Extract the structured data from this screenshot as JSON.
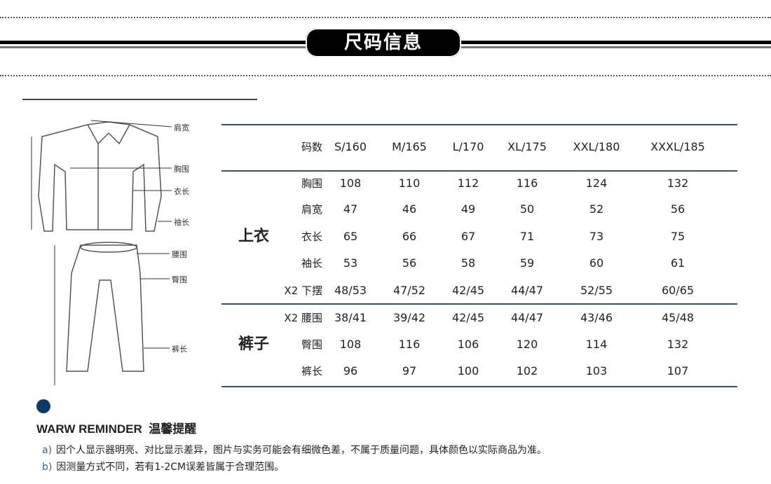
{
  "header": {
    "title": "尺码信息"
  },
  "diagram": {
    "shirt_labels": [
      "肩宽",
      "胸围",
      "衣长",
      "袖长"
    ],
    "pants_labels": [
      "腰围",
      "臀围",
      "裤长"
    ]
  },
  "table": {
    "header_label": "码数",
    "sizes": [
      "S/160",
      "M/165",
      "L/170",
      "XL/175",
      "XXL/180",
      "XXXL/185"
    ],
    "sections": [
      {
        "name": "上衣",
        "rows": [
          {
            "label": "胸围",
            "values": [
              "108",
              "110",
              "112",
              "116",
              "124",
              "132"
            ]
          },
          {
            "label": "肩宽",
            "values": [
              "47",
              "46",
              "49",
              "50",
              "52",
              "56"
            ]
          },
          {
            "label": "衣长",
            "values": [
              "65",
              "66",
              "67",
              "71",
              "73",
              "75"
            ]
          },
          {
            "label": "袖长",
            "values": [
              "53",
              "56",
              "58",
              "59",
              "60",
              "61"
            ]
          },
          {
            "label": "X2 下摆",
            "values": [
              "48/53",
              "47/52",
              "42/45",
              "44/47",
              "52/55",
              "60/65"
            ]
          }
        ]
      },
      {
        "name": "裤子",
        "rows": [
          {
            "label": "X2 腰围",
            "values": [
              "38/41",
              "39/42",
              "42/45",
              "44/47",
              "43/46",
              "45/48"
            ]
          },
          {
            "label": "臀围",
            "values": [
              "108",
              "116",
              "106",
              "120",
              "114",
              "132"
            ]
          },
          {
            "label": "裤长",
            "values": [
              "96",
              "97",
              "100",
              "102",
              "103",
              "107"
            ]
          }
        ]
      }
    ]
  },
  "reminder": {
    "title_en": "WARW REMINDER",
    "title_cn": "温馨提醒",
    "accent": "#0e3a66",
    "notes": [
      {
        "key": "a)",
        "text": "因个人显示器明亮、对比显示差异，图片与实务可能会有细微色差，不属于质量问题，具体颜色以实际商品为准。"
      },
      {
        "key": "b)",
        "text": "因测量方式不同，若有1-2CM误差皆属于合理范围。"
      }
    ]
  }
}
